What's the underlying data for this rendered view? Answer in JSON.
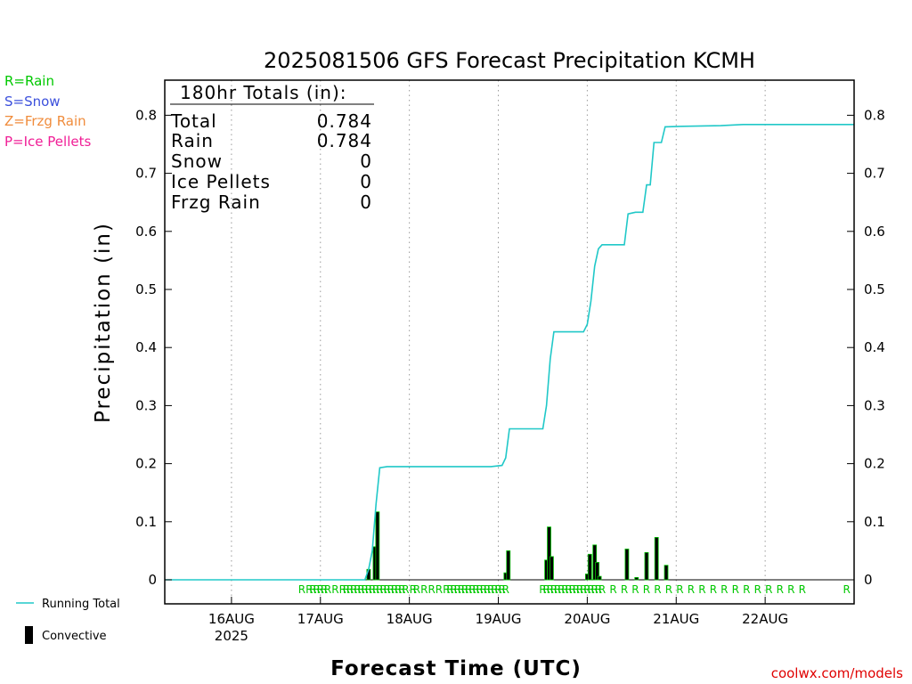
{
  "chart_data": {
    "type": "bar",
    "title": "2025081506 GFS Forecast Precipitation KCMH",
    "xlabel": "Forecast Time (UTC)",
    "ylabel": "Precipitation (in)",
    "ylim": [
      0,
      0.8
    ],
    "yticks": [
      "0",
      "0.1",
      "0.2",
      "0.3",
      "0.4",
      "0.5",
      "0.6",
      "0.7",
      "0.8"
    ],
    "x_range_hours": [
      0,
      186
    ],
    "x_ticks": [
      {
        "label": "16AUG",
        "hour": 18,
        "sub": "2025"
      },
      {
        "label": "17AUG",
        "hour": 42
      },
      {
        "label": "18AUG",
        "hour": 66
      },
      {
        "label": "19AUG",
        "hour": 90
      },
      {
        "label": "20AUG",
        "hour": 114
      },
      {
        "label": "21AUG",
        "hour": 138
      },
      {
        "label": "22AUG",
        "hour": 162
      }
    ],
    "series": [
      {
        "name": "Running Total",
        "color": "#20c8c8",
        "points": [
          [
            0,
            0
          ],
          [
            54,
            0
          ],
          [
            55,
            0.018
          ],
          [
            56,
            0.05
          ],
          [
            57,
            0.13
          ],
          [
            58,
            0.193
          ],
          [
            60,
            0.195
          ],
          [
            74,
            0.195
          ],
          [
            88,
            0.195
          ],
          [
            91,
            0.197
          ],
          [
            92,
            0.21
          ],
          [
            93,
            0.26
          ],
          [
            102,
            0.26
          ],
          [
            103,
            0.3
          ],
          [
            104,
            0.38
          ],
          [
            105,
            0.427
          ],
          [
            113,
            0.427
          ],
          [
            114,
            0.44
          ],
          [
            115,
            0.48
          ],
          [
            116,
            0.54
          ],
          [
            117,
            0.57
          ],
          [
            118,
            0.577
          ],
          [
            124,
            0.577
          ],
          [
            125,
            0.63
          ],
          [
            127,
            0.633
          ],
          [
            129,
            0.633
          ],
          [
            130,
            0.68
          ],
          [
            131,
            0.68
          ],
          [
            132,
            0.753
          ],
          [
            134,
            0.753
          ],
          [
            135,
            0.78
          ],
          [
            140,
            0.781
          ],
          [
            150,
            0.782
          ],
          [
            156,
            0.784
          ],
          [
            186,
            0.784
          ]
        ]
      },
      {
        "name": "Convective",
        "color": "#000000",
        "bar_fill": "#00c800",
        "bars": [
          [
            55,
            0.018
          ],
          [
            56.7,
            0.057
          ],
          [
            57.4,
            0.117
          ],
          [
            92,
            0.012
          ],
          [
            92.7,
            0.05
          ],
          [
            103,
            0.034
          ],
          [
            103.7,
            0.091
          ],
          [
            104.4,
            0.04
          ],
          [
            114,
            0.01
          ],
          [
            114.7,
            0.044
          ],
          [
            116,
            0.06
          ],
          [
            116.7,
            0.03
          ],
          [
            117.3,
            0.006
          ],
          [
            124.7,
            0.053
          ],
          [
            127.3,
            0.004
          ],
          [
            130,
            0.047
          ],
          [
            132.7,
            0.073
          ],
          [
            135.3,
            0.025
          ]
        ]
      }
    ],
    "precip_types": {
      "R": [
        37,
        39,
        40,
        41,
        42,
        43,
        44,
        46,
        48,
        49,
        50,
        51,
        52,
        53,
        54,
        55,
        56,
        57,
        58,
        59,
        60,
        61,
        62,
        63,
        64,
        65,
        67,
        68,
        70,
        72,
        74,
        76,
        77,
        78,
        79,
        80,
        81,
        82,
        83,
        84,
        85,
        86,
        87,
        88,
        89,
        90,
        91,
        92,
        102,
        103,
        104,
        105,
        106,
        107,
        108,
        109,
        110,
        111,
        112,
        113,
        114,
        115,
        116,
        117,
        118,
        121,
        124,
        127,
        130,
        133,
        136,
        139,
        142,
        145,
        148,
        151,
        154,
        157,
        160,
        163,
        166,
        169,
        172,
        184
      ],
      "label_color": "#00c800"
    }
  },
  "totals": {
    "header": "180hr Totals (in):",
    "rows": [
      {
        "label": "Total",
        "value": "0.784"
      },
      {
        "label": "Rain",
        "value": "0.784"
      },
      {
        "label": "Snow",
        "value": "0"
      },
      {
        "label": "Ice Pellets",
        "value": "0"
      },
      {
        "label": "Frzg Rain",
        "value": "0"
      }
    ]
  },
  "type_legend": [
    {
      "text": "R=Rain",
      "color": "#00c800"
    },
    {
      "text": "S=Snow",
      "color": "#3c50dc"
    },
    {
      "text": "Z=Frzg Rain",
      "color": "#f08c3c"
    },
    {
      "text": "P=Ice Pellets",
      "color": "#f01e96"
    }
  ],
  "series_legend": {
    "running_total": "Running Total",
    "convective": "Convective"
  },
  "credit": {
    "text": "coolwx.com/models",
    "color": "#e00000"
  }
}
